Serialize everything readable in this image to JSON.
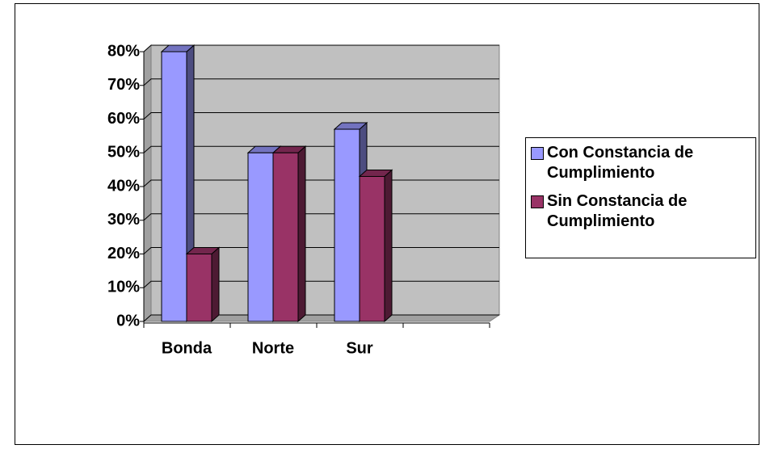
{
  "chart_data": {
    "type": "bar3d",
    "categories": [
      "Bonda",
      "Norte",
      "Sur",
      null
    ],
    "series": [
      {
        "name": "Con Constancia de Cumplimiento",
        "color": "#9999ff",
        "values": [
          80,
          50,
          57,
          null
        ]
      },
      {
        "name": "Sin Constancia de Cumplimiento",
        "color": "#993366",
        "values": [
          20,
          50,
          43,
          null
        ]
      }
    ],
    "ylim": [
      0,
      80
    ],
    "yticks": [
      {
        "value": 0,
        "label": "0%"
      },
      {
        "value": 10,
        "label": "10%"
      },
      {
        "value": 20,
        "label": "20%"
      },
      {
        "value": 30,
        "label": "30%"
      },
      {
        "value": 40,
        "label": "40%"
      },
      {
        "value": 50,
        "label": "50%"
      },
      {
        "value": 60,
        "label": "60%"
      },
      {
        "value": 70,
        "label": "70%"
      },
      {
        "value": 80,
        "label": "80%"
      }
    ],
    "grid": true,
    "legend": "right"
  }
}
